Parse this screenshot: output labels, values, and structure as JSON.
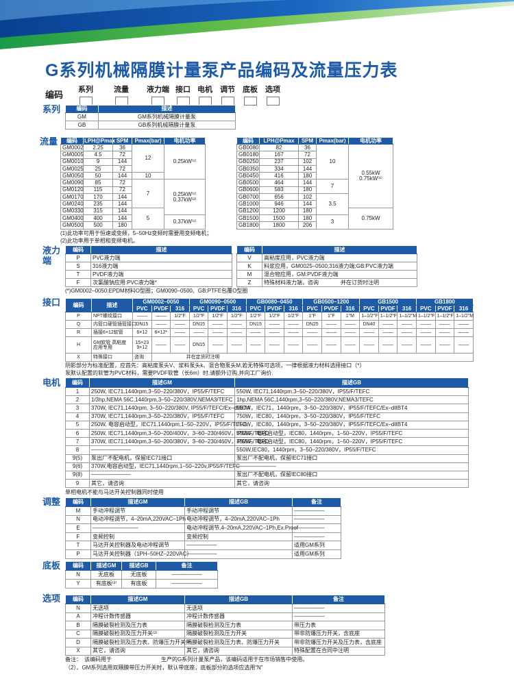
{
  "title": "G系列机械隔膜计量泵产品编码及流量压力表",
  "colors": {
    "brand_blue": "#1a5aa8",
    "header_blue": "#1e5aa5",
    "banner_green": "#2aa84a"
  },
  "code_row": {
    "label": "编码",
    "fields": [
      "系列",
      "流量",
      "液力端",
      "接口",
      "电机",
      "调节",
      "底板",
      "选项"
    ]
  },
  "series": {
    "label": "系列",
    "headers": [
      "编码",
      "描述"
    ],
    "rows": [
      [
        "GM",
        "GM系列机械隔膜计量泵"
      ],
      [
        "GB",
        "GB系列机械隔膜计量泵"
      ]
    ]
  },
  "flow": {
    "label": "流量",
    "headers": [
      "编码",
      "LPH@Pmax",
      "SPM",
      "Pmax(bar)",
      "电机功率"
    ],
    "gm_rows": [
      [
        "GM0002",
        "2.25",
        "36",
        "12",
        "0.25kW⁽¹⁾"
      ],
      [
        "GM0005",
        "4.5",
        "72",
        "12",
        "0.25kW⁽¹⁾"
      ],
      [
        "GM0010",
        "9",
        "144",
        "12",
        "0.25kW⁽¹⁾"
      ],
      [
        "GM0025",
        "25",
        "72",
        "12",
        "0.25kW⁽¹⁾"
      ],
      [
        "GM0050",
        "50",
        "144",
        "10",
        "0.25kW⁽¹⁾"
      ],
      [
        "GM0090",
        "85",
        "72",
        "7",
        "0.25kW⁽¹⁾ 0.37kW⁽²⁾"
      ],
      [
        "GM0120",
        "115",
        "72",
        "7",
        "0.25kW⁽¹⁾ 0.37kW⁽²⁾"
      ],
      [
        "GM0170",
        "170",
        "144",
        "7",
        "0.25kW⁽¹⁾ 0.37kW⁽²⁾"
      ],
      [
        "GM0240",
        "235",
        "144",
        "7",
        "0.25kW⁽¹⁾ 0.37kW⁽²⁾"
      ],
      [
        "GM0330",
        "315",
        "144",
        "5",
        "0.25kW⁽¹⁾ 0.37kW⁽²⁾"
      ],
      [
        "GM0400",
        "400",
        "144",
        "5",
        "0.37kW⁽¹⁾"
      ],
      [
        "GM0500",
        "500",
        "180",
        "5",
        "0.37kW⁽¹⁾"
      ]
    ],
    "gb_rows": [
      [
        "GB0080",
        "82",
        "36",
        "10",
        "0.55kW 0.75kW⁽¹⁾"
      ],
      [
        "GB0180",
        "167",
        "72",
        "10",
        "0.55kW 0.75kW⁽¹⁾"
      ],
      [
        "GB0250",
        "237",
        "102",
        "10",
        "0.55kW 0.75kW⁽¹⁾"
      ],
      [
        "GB0350",
        "334",
        "144",
        "10",
        "0.55kW 0.75kW⁽¹⁾"
      ],
      [
        "GB0450",
        "416",
        "180",
        "10",
        "0.55kW 0.75kW⁽¹⁾"
      ],
      [
        "GB0500",
        "464",
        "144",
        "7",
        "0.55kW 0.75kW⁽¹⁾"
      ],
      [
        "GB0600",
        "583",
        "180",
        "7",
        "0.55kW 0.75kW⁽¹⁾"
      ],
      [
        "GB0700",
        "656",
        "102",
        "3.5",
        "0.55kW 0.75kW⁽¹⁾"
      ],
      [
        "GB1000",
        "946",
        "144",
        "3.5",
        "0.55kW 0.75kW⁽¹⁾"
      ],
      [
        "GB1200",
        "1200",
        "180",
        "3.5",
        "0.75kW"
      ],
      [
        "GB1500",
        "1500",
        "180",
        "3",
        "0.75kW"
      ],
      [
        "GB1800",
        "1800",
        "206",
        "3",
        "0.75kW"
      ]
    ],
    "notes": [
      "(1)此功率可用于恒速或变频，5–50Hz变频时需要用变频电机；",
      "(2)此功率用于单相和变频电机。"
    ]
  },
  "liquid_end": {
    "label": "液力端",
    "headers": [
      "编码",
      "描述"
    ],
    "left_rows": [
      [
        "P",
        "PVC液力端"
      ],
      [
        "S",
        "316液力端"
      ],
      [
        "T",
        "PVDF液力端"
      ],
      [
        "F",
        "次氯酸钠应用:PVC液力端*"
      ]
    ],
    "right_rows": [
      [
        "V",
        "高粘度应用，PVC液力端"
      ],
      [
        "K",
        "料浆应用，GM0025–0500;316液力端;GB:PVC液力端"
      ],
      [
        "M",
        "混合物应用，GM:PVDF液力端"
      ],
      [
        "Z",
        "特殊材料液力端，咨询　　　　并在订货时注明"
      ]
    ],
    "note": "(*)GM0002–0050:EPDM材料O型圈；GM0090–0500、GB:PTFE包覆O型圈"
  },
  "ports": {
    "label": "接口",
    "headers": [
      "编码",
      "描述"
    ],
    "groups": [
      "GM0002–0050",
      "GM0090–0500",
      "GB0080–0450",
      "GB0500–1200",
      "GB1500",
      "GB1800"
    ],
    "materials": [
      "PVC",
      "PVDF",
      "316"
    ],
    "rows": [
      [
        "P",
        "NPT螺纹接口",
        "––––",
        "––––",
        "1/2\"F",
        "1/2\"F",
        "1/2\"F",
        "1/2\"F",
        "1/2\"F",
        "1/2\"F",
        "1/2\"F",
        "1\"F",
        "1\"F",
        "1\"M",
        "1–1/2\"F",
        "1–1/2\"F",
        "1–1/2\"M",
        "1–1/2\"F",
        "1–1/2\"F",
        "1–1/2\"M"
      ],
      [
        "Q",
        "内管口硬管插管接口",
        "DN15",
        "––––",
        "––––",
        "DN15",
        "––––",
        "––––",
        "DN15",
        "––––",
        "––––",
        "DN25",
        "––––",
        "––––",
        "DN40",
        "––––",
        "––––",
        "––––",
        "––––",
        "––––"
      ],
      [
        "R",
        "插接6×12软管",
        "6×12",
        "6×12*",
        "––––",
        "––––",
        "––––",
        "––––",
        "––––",
        "––––",
        "––––",
        "––––",
        "––––",
        "––––",
        "––––",
        "––––",
        "––––",
        "––––",
        "––––",
        "––––"
      ],
      [
        "H",
        "GM软管 高粘度应用专用",
        "15×23 9×12",
        "––––",
        "––––",
        "DN15",
        "––––",
        "––––",
        "––––",
        "––––",
        "––––",
        "––––",
        "––––",
        "––––",
        "––––",
        "––––",
        "––––",
        "––––",
        "––––",
        "––––"
      ],
      [
        "X",
        "特殊接口",
        "咨询",
        "并在定货时注明"
      ]
    ],
    "notes": [
      "阴影部分为标准配置，应首先：高粘度泵头V、浆料泵头k、混合物泵头M,若无特殊可选项，一律根据液力材料选择接口（*）",
      "泵默认配置的软管为PVC材料，需要PVDF软管（长6m）时,请额外订购,并向工厂询价."
    ]
  },
  "motor": {
    "label": "电机",
    "headers": [
      "编码",
      "描述GM",
      "描述GB"
    ],
    "rows": [
      [
        "1",
        "250W, IEC71,1440rpm,3–50–220/380V，IP55/F/TEFC",
        "550W, IEC71,1440rpm,3–50–220/380V，IP55/F/TEFC"
      ],
      [
        "2",
        "1/3hp,NEMA 56C,1440rpm,3–50–220/380V,NEMA3/TEFC",
        "1hp,NEMA 56C,1440rpm,3–50–220/380V,NEMA3/TEFC"
      ],
      [
        "3",
        "370W, IEC71,1440rpm, 3–50–220/380V, IP55/F/TEFC/Ex–dIIBT4",
        "550W，IEC71，1440rpm，3–50–220/380V，IP55/F/TEFC/Ex–dIIBT4"
      ],
      [
        "4",
        "370W, IEC71,1440rpm,3–50–220/380V，IP55/F/TEFC",
        "750W，IEC80，1440rpm，3–50–220/380V，IP55/F/TEFC"
      ],
      [
        "5",
        "250W, 电容启动型，IEC71,1440rpm,1–50–220V，IP55/F/TEFC",
        "750W，IEC80，1440rpm，3–50–220/380V，IP55/F/TEFC/Ex–dIIBT4"
      ],
      [
        "6",
        "250W, IEC71,1440rpm,3–50–200/400V，3–60–230/460V，IP55/F/TEFC",
        "550W，电容启动型，IEC80，1440rpm，1–50–220V，IP55/F/TEFC"
      ],
      [
        "7",
        "370W, IEC71,1440rpm,3–50–200/380V，3–60–230/460V，IP55/F/TEFC",
        "750W，电容启动型，IEC80，1440rpm，1–50–220V，IP55/F/TEFC"
      ],
      [
        "8",
        "–––––––––––––",
        "550W,IEC80，1440rpm，3–50–220/380V，IP55/F/TEFC"
      ],
      [
        "9(5)",
        "泵出厂不配电机，保留IEC71接口",
        "泵出厂不配电机，保留IEC71接口"
      ],
      [
        "9(6)",
        "370W,电容启动型，IEC71,1440rpm,1–50–220v,IP55/F/TEFC",
        "–––––––––––––"
      ],
      [
        "9(8)",
        "–––––––––––––",
        "泵出厂不配电机，保留IEC80接口"
      ],
      [
        "9",
        "其它，请咨询",
        "其它，请咨询"
      ]
    ],
    "note": "单相电机不能与马达开关控制器同时使用"
  },
  "adjust": {
    "label": "调整",
    "headers": [
      "编码",
      "描述GM",
      "描述GB",
      "备注"
    ],
    "rows": [
      [
        "M",
        "手动冲程调节",
        "手动冲程调节",
        "––––––––––"
      ],
      [
        "N",
        "电动冲程调节，4–20mA,220VAC–1Ph",
        "电动冲程调节，4–20mA,220VAC–1Ph",
        "––––––––––"
      ],
      [
        "E",
        "–––––––––––––––",
        "电动冲程调节,4–20mA,220VAC–1Ph,Ex.Proof",
        "––––––––––"
      ],
      [
        "F",
        "变频控制",
        "变频控制",
        "––––––––––"
      ],
      [
        "T",
        "马达开关控制器及电动冲程调节",
        "––––––––––",
        "适用GM系列"
      ],
      [
        "P",
        "马达开关控制器（1PH–50HZ–220VAC）",
        "––––––––––",
        "适用GM系列"
      ]
    ]
  },
  "base": {
    "label": "底板",
    "headers": [
      "编码",
      "描述GM",
      "描述GB",
      "备注"
    ],
    "rows": [
      [
        "N",
        "无底板",
        "无底板",
        "––––––––––"
      ],
      [
        "Y",
        "有底板⁽²⁾",
        "有底板",
        "––––––––––"
      ]
    ]
  },
  "options": {
    "label": "选项",
    "headers": [
      "编码",
      "描述GM",
      "描述GB",
      "备注"
    ],
    "rows": [
      [
        "N",
        "无选项",
        "无选项",
        "––––––––––"
      ],
      [
        "A",
        "冲程计数传感器",
        "冲程计数传感器",
        "––––––––––"
      ],
      [
        "B",
        "隔膜破裂检测及压力表",
        "隔膜破裂检测及压力表",
        "带压力表"
      ],
      [
        "C",
        "隔膜破裂检测及压力开关⁽²⁾",
        "隔膜破裂检测及压力开关",
        "带非防爆压力开关，含底座"
      ],
      [
        "D",
        "隔膜破裂检测及压力表、防爆压力开关⁽²⁾",
        "隔膜破裂检测及压力表、防爆压力开关",
        "带非防爆压力开关及压力表，含底座"
      ],
      [
        "X",
        "其它，请咨询",
        "其它，请咨询",
        "特殊配置在合同中注明"
      ]
    ]
  },
  "footer": {
    "notes": [
      "备注：　该编码用于　　　　　　　　　生产的G系列计量泵产品，该编码适用于在市场销售中使用。",
      "（2）、GM系列选用双隔膜带压力开关时，默认带底座，底板部分的选项应选用“N”"
    ]
  }
}
